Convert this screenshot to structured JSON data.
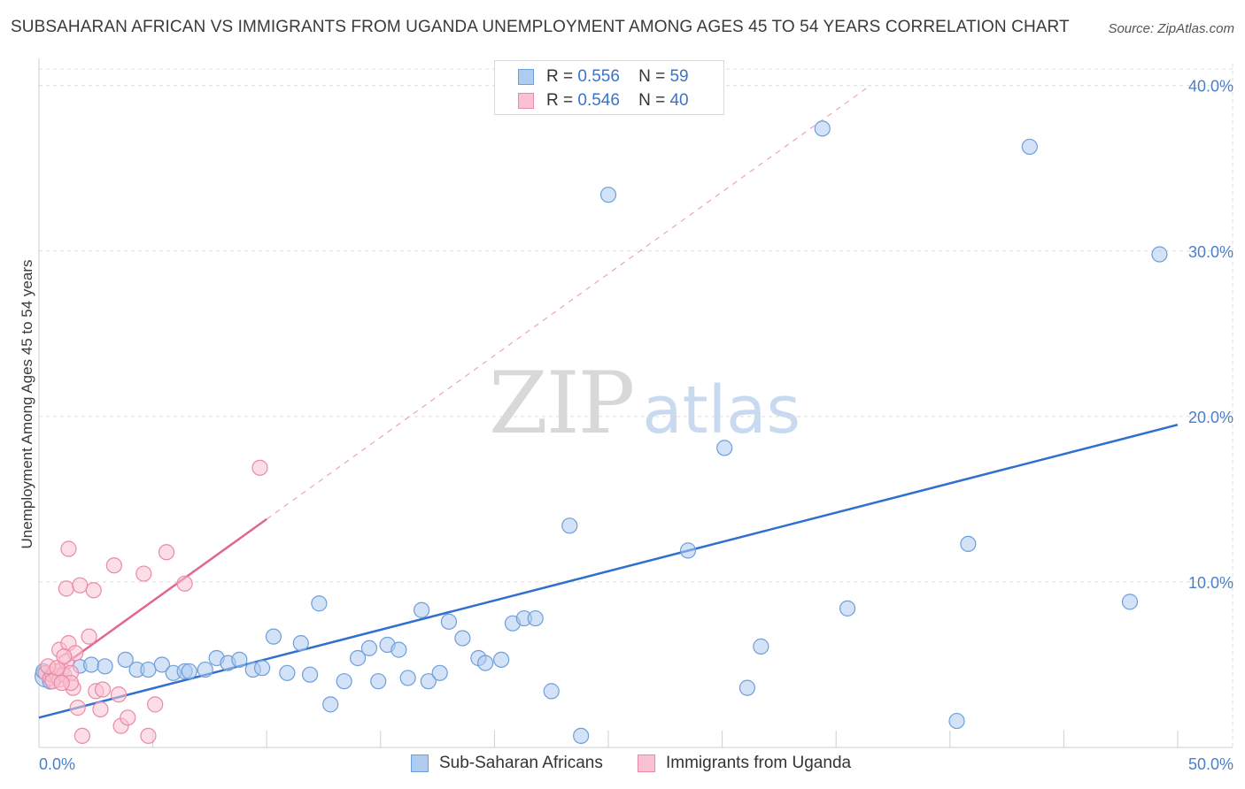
{
  "header": {
    "title": "SUBSAHARAN AFRICAN VS IMMIGRANTS FROM UGANDA UNEMPLOYMENT AMONG AGES 45 TO 54 YEARS CORRELATION CHART",
    "source": "Source: ZipAtlas.com"
  },
  "watermark": {
    "zip": "ZIP",
    "atlas": "atlas"
  },
  "legend": {
    "rows": [
      {
        "r_label": "R =",
        "r_value": "0.556",
        "n_label": "N =",
        "n_value": "59",
        "color": "#aecbf0",
        "border": "#6d9fd9"
      },
      {
        "r_label": "R =",
        "r_value": "0.546",
        "n_label": "N =",
        "n_value": "40",
        "color": "#f9c2d2",
        "border": "#ea8aa6"
      }
    ]
  },
  "bottom_legend": {
    "series1": "Sub-Saharan Africans",
    "series2": "Immigrants from Uganda"
  },
  "chart_data": {
    "type": "scatter",
    "title": "SUBSAHARAN AFRICAN VS IMMIGRANTS FROM UGANDA UNEMPLOYMENT AMONG AGES 45 TO 54 YEARS CORRELATION CHART",
    "xlabel": "",
    "ylabel": "Unemployment Among Ages 45 to 54 years",
    "xlim": [
      0,
      50
    ],
    "ylim": [
      0,
      41
    ],
    "x_tick_labels": [
      {
        "value": 0,
        "label": "0.0%"
      },
      {
        "value": 50,
        "label": "50.0%"
      }
    ],
    "y_tick_labels": [
      {
        "value": 10,
        "label": "10.0%"
      },
      {
        "value": 20,
        "label": "20.0%"
      },
      {
        "value": 30,
        "label": "30.0%"
      },
      {
        "value": 40,
        "label": "40.0%"
      }
    ],
    "grid": true,
    "series": [
      {
        "name": "Sub-Saharan Africans",
        "color": "#6d9fd9",
        "fill": "#aecbf0",
        "trend": {
          "x": [
            0,
            50
          ],
          "y": [
            1.8,
            19.5
          ],
          "style": "solid",
          "color": "#2f6fd0"
        },
        "points": [
          [
            0.3,
            4.3,
            22
          ],
          [
            0.5,
            4.0,
            16
          ],
          [
            0.9,
            4.4,
            14
          ],
          [
            1.8,
            4.9,
            14
          ],
          [
            2.3,
            5.0,
            12
          ],
          [
            2.9,
            4.9,
            10
          ],
          [
            3.8,
            5.3,
            10
          ],
          [
            4.3,
            4.7,
            10
          ],
          [
            4.8,
            4.7,
            10
          ],
          [
            5.4,
            5.0,
            10
          ],
          [
            5.9,
            4.5,
            9
          ],
          [
            6.4,
            4.6,
            9
          ],
          [
            6.6,
            4.6,
            9
          ],
          [
            7.3,
            4.7,
            9
          ],
          [
            7.8,
            5.4,
            9
          ],
          [
            8.3,
            5.1,
            9
          ],
          [
            8.8,
            5.3,
            9
          ],
          [
            9.4,
            4.7,
            9
          ],
          [
            9.8,
            4.8,
            9
          ],
          [
            10.3,
            6.7,
            9
          ],
          [
            10.9,
            4.5,
            9
          ],
          [
            11.5,
            6.3,
            9
          ],
          [
            11.9,
            4.4,
            9
          ],
          [
            12.3,
            8.7,
            9
          ],
          [
            12.8,
            2.6,
            9
          ],
          [
            13.4,
            4.0,
            9
          ],
          [
            14.0,
            5.4,
            9
          ],
          [
            14.5,
            6.0,
            9
          ],
          [
            14.9,
            4.0,
            9
          ],
          [
            15.3,
            6.2,
            9
          ],
          [
            15.8,
            5.9,
            9
          ],
          [
            16.2,
            4.2,
            9
          ],
          [
            16.8,
            8.3,
            9
          ],
          [
            17.1,
            4.0,
            9
          ],
          [
            17.6,
            4.5,
            9
          ],
          [
            18.0,
            7.6,
            9
          ],
          [
            18.6,
            6.6,
            9
          ],
          [
            19.3,
            5.4,
            9
          ],
          [
            19.6,
            5.1,
            9
          ],
          [
            20.3,
            5.3,
            9
          ],
          [
            20.8,
            7.5,
            9
          ],
          [
            21.3,
            7.8,
            9
          ],
          [
            21.8,
            7.8,
            9
          ],
          [
            22.5,
            3.4,
            9
          ],
          [
            23.3,
            13.4,
            9
          ],
          [
            23.8,
            0.7,
            9
          ],
          [
            25.0,
            33.4,
            9
          ],
          [
            28.5,
            11.9,
            9
          ],
          [
            30.1,
            18.1,
            9
          ],
          [
            31.1,
            3.6,
            9
          ],
          [
            31.7,
            6.1,
            9
          ],
          [
            34.4,
            37.4,
            9
          ],
          [
            35.5,
            8.4,
            9
          ],
          [
            40.3,
            1.6,
            9
          ],
          [
            40.8,
            12.3,
            9
          ],
          [
            43.5,
            36.3,
            9
          ],
          [
            47.9,
            8.8,
            9
          ],
          [
            49.2,
            29.8,
            9
          ],
          [
            0.2,
            4.6,
            9
          ]
        ]
      },
      {
        "name": "Immigrants from Uganda",
        "color": "#ea8aa6",
        "fill": "#f9c2d2",
        "trend": {
          "x": [
            0.5,
            10.0
          ],
          "y": [
            4.4,
            13.8
          ],
          "style": "solid",
          "color": "#e0678f",
          "extension": {
            "x": [
              10.0,
              36.5
            ],
            "y": [
              13.8,
              40.0
            ],
            "style": "dashed"
          }
        },
        "points": [
          [
            0.3,
            4.5,
            12
          ],
          [
            0.5,
            4.2,
            12
          ],
          [
            0.6,
            4.4,
            10
          ],
          [
            0.7,
            4.6,
            10
          ],
          [
            0.8,
            4.3,
            10
          ],
          [
            0.9,
            4.1,
            10
          ],
          [
            1.0,
            4.7,
            10
          ],
          [
            1.1,
            4.4,
            10
          ],
          [
            0.4,
            4.9,
            9
          ],
          [
            0.9,
            5.9,
            9
          ],
          [
            1.2,
            5.2,
            9
          ],
          [
            1.3,
            6.3,
            9
          ],
          [
            1.4,
            4.5,
            9
          ],
          [
            1.5,
            3.6,
            9
          ],
          [
            1.2,
            9.6,
            9
          ],
          [
            1.4,
            3.9,
            9
          ],
          [
            1.6,
            5.7,
            9
          ],
          [
            1.7,
            2.4,
            9
          ],
          [
            1.8,
            9.8,
            9
          ],
          [
            1.3,
            12.0,
            9
          ],
          [
            1.9,
            0.7,
            9
          ],
          [
            2.2,
            6.7,
            9
          ],
          [
            2.4,
            9.5,
            9
          ],
          [
            2.5,
            3.4,
            9
          ],
          [
            2.7,
            2.3,
            9
          ],
          [
            2.8,
            3.5,
            9
          ],
          [
            3.3,
            11.0,
            9
          ],
          [
            3.5,
            3.2,
            9
          ],
          [
            3.6,
            1.3,
            9
          ],
          [
            3.9,
            1.8,
            9
          ],
          [
            4.6,
            10.5,
            9
          ],
          [
            4.8,
            0.7,
            9
          ],
          [
            5.1,
            2.6,
            9
          ],
          [
            5.6,
            11.8,
            9
          ],
          [
            6.4,
            9.9,
            9
          ],
          [
            9.7,
            16.9,
            9
          ],
          [
            0.6,
            4.0,
            9
          ],
          [
            0.8,
            4.8,
            9
          ],
          [
            1.0,
            3.9,
            9
          ],
          [
            1.1,
            5.5,
            9
          ]
        ]
      }
    ]
  }
}
